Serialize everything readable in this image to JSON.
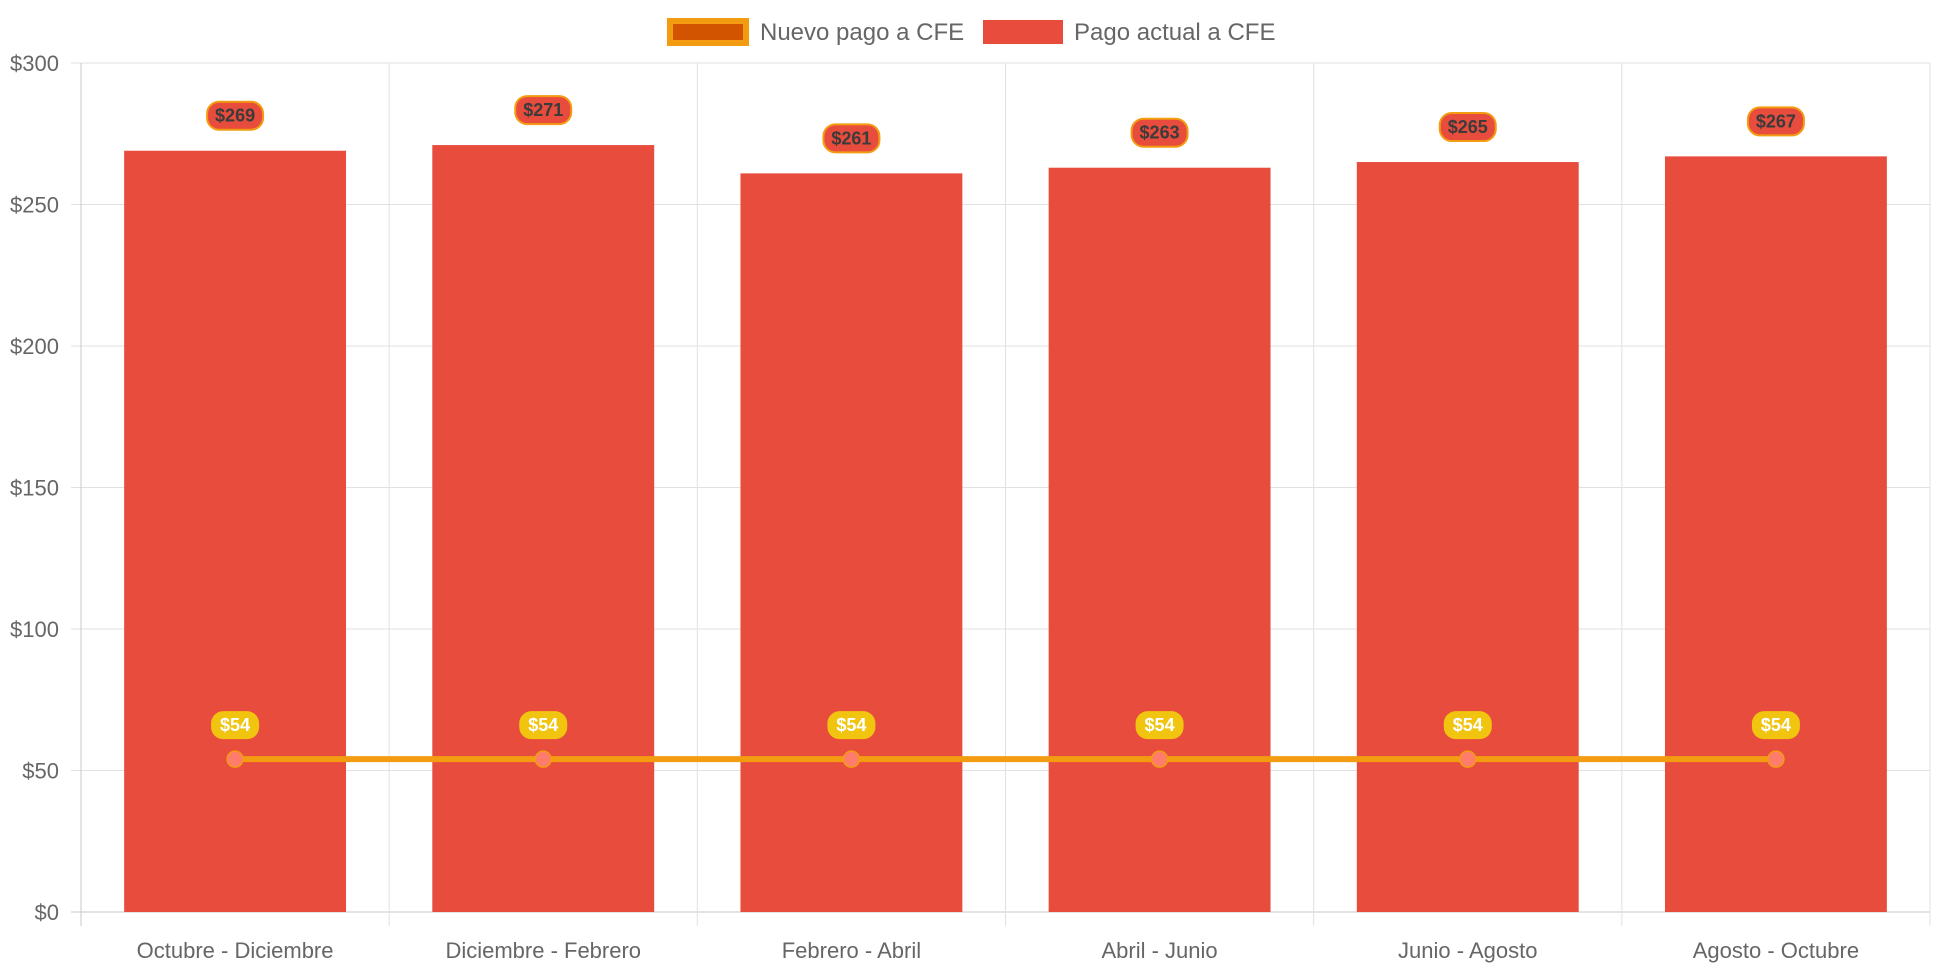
{
  "chart_data": {
    "type": "bar",
    "categories": [
      "Octubre - Diciembre",
      "Diciembre - Febrero",
      "Febrero - Abril",
      "Abril - Junio",
      "Junio - Agosto",
      "Agosto - Octubre"
    ],
    "series": [
      {
        "name": "Nuevo pago a CFE",
        "type": "line",
        "values": [
          54,
          54,
          54,
          54,
          54,
          54
        ],
        "labels": [
          "$54",
          "$54",
          "$54",
          "$54",
          "$54",
          "$54"
        ],
        "color": "#f39c12",
        "point_color": "#ff7b6b",
        "label_background": "#f1c40f",
        "legend_fill": "#d35400"
      },
      {
        "name": "Pago actual a CFE",
        "type": "bar",
        "values": [
          269,
          271,
          261,
          263,
          265,
          267
        ],
        "labels": [
          "$269",
          "$271",
          "$261",
          "$263",
          "$265",
          "$267"
        ],
        "color": "#e74c3c",
        "label_border": "#f39c12"
      }
    ],
    "y_ticks": [
      "$0",
      "$50",
      "$100",
      "$150",
      "$200",
      "$250",
      "$300"
    ],
    "y_tick_values": [
      0,
      50,
      100,
      150,
      200,
      250,
      300
    ],
    "ylim": [
      0,
      300
    ],
    "grid": true,
    "legend_position": "top-center",
    "title": "",
    "xlabel": "",
    "ylabel": ""
  }
}
